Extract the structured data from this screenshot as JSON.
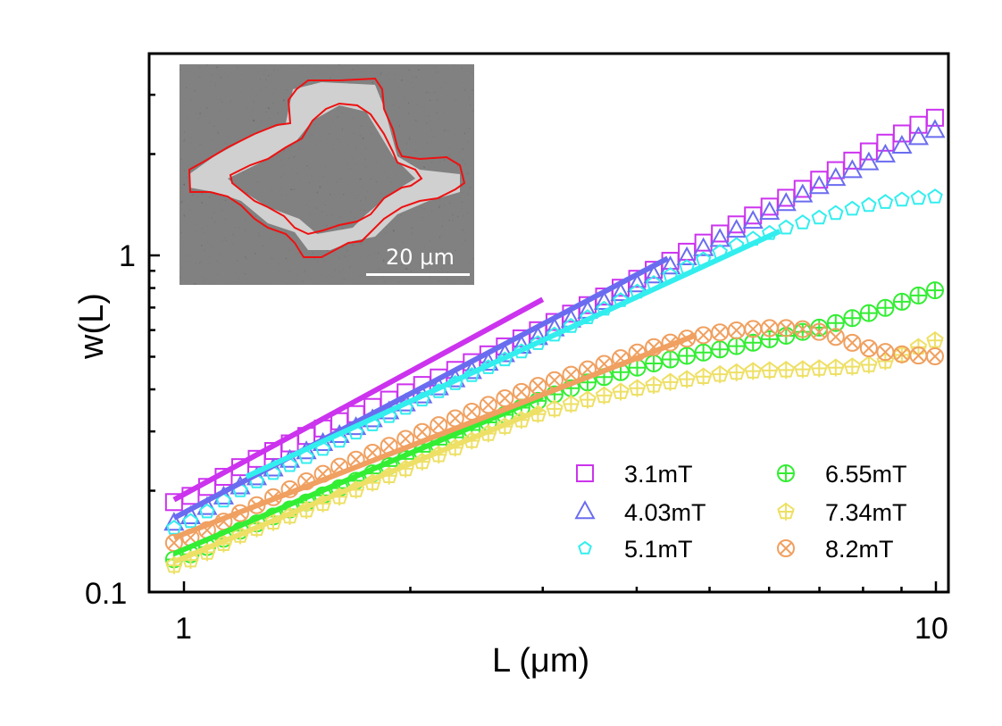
{
  "chart_data": {
    "type": "scatter",
    "title": "",
    "xlabel": "L (μm)",
    "ylabel": "w(L)",
    "xscale": "log",
    "yscale": "log",
    "xlim": [
      0.9,
      10.4
    ],
    "ylim": [
      0.1,
      4.0
    ],
    "x_ticks": [
      1,
      10
    ],
    "x_tick_labels": [
      "1",
      "10"
    ],
    "y_ticks": [
      0.1,
      1
    ],
    "y_tick_labels": [
      "0.1",
      "1"
    ],
    "grid": false,
    "legend_position": "lower right",
    "inset": {
      "description": "grayscale micrograph of a domain wall with red contour outlines",
      "scale_bar_label": "20 μm"
    },
    "series": [
      {
        "name": "3.1mT",
        "marker": "square",
        "color": "#cc33ee",
        "x": [
          0.97,
          1.21,
          1.5,
          1.86,
          2.31,
          2.87,
          3.56,
          4.42,
          5.48,
          6.8,
          8.43,
          10.3
        ],
        "y": [
          0.185,
          0.24,
          0.3,
          0.37,
          0.46,
          0.58,
          0.74,
          0.96,
          1.25,
          1.62,
          2.12,
          2.62
        ],
        "fit": {
          "x": [
            0.97,
            3.0
          ],
          "y": [
            0.188,
            0.74
          ]
        }
      },
      {
        "name": "4.03mT",
        "marker": "triangle",
        "color": "#6a6cf0",
        "x": [
          0.97,
          1.21,
          1.5,
          1.86,
          2.31,
          2.87,
          3.56,
          4.42,
          5.48,
          6.8,
          8.43,
          10.3
        ],
        "y": [
          0.16,
          0.21,
          0.27,
          0.34,
          0.43,
          0.55,
          0.71,
          0.92,
          1.2,
          1.55,
          1.95,
          2.4
        ],
        "fit": {
          "x": [
            0.97,
            4.4
          ],
          "y": [
            0.166,
            0.98
          ]
        }
      },
      {
        "name": "5.1mT",
        "marker": "pentagon",
        "color": "#33eeee",
        "x": [
          0.97,
          1.21,
          1.5,
          1.86,
          2.31,
          2.87,
          3.56,
          4.42,
          5.48,
          6.8,
          8.43,
          10.3
        ],
        "y": [
          0.155,
          0.205,
          0.26,
          0.33,
          0.42,
          0.53,
          0.68,
          0.87,
          1.08,
          1.27,
          1.43,
          1.5
        ],
        "fit": {
          "x": [
            1.21,
            6.2
          ],
          "y": [
            0.22,
            1.18
          ]
        }
      },
      {
        "name": "6.55mT",
        "marker": "circle-plus",
        "color": "#33ee33",
        "x": [
          0.97,
          1.21,
          1.5,
          1.86,
          2.31,
          2.87,
          3.56,
          4.42,
          5.48,
          6.8,
          8.43,
          10.3
        ],
        "y": [
          0.125,
          0.155,
          0.19,
          0.235,
          0.29,
          0.36,
          0.43,
          0.49,
          0.54,
          0.6,
          0.69,
          0.8
        ],
        "fit": {
          "x": [
            0.97,
            3.0
          ],
          "y": [
            0.13,
            0.38
          ]
        }
      },
      {
        "name": "7.34mT",
        "marker": "pentagon-plus",
        "color": "#eee066",
        "x": [
          0.97,
          1.21,
          1.5,
          1.86,
          2.31,
          2.87,
          3.56,
          4.42,
          5.48,
          6.8,
          8.43,
          10.3
        ],
        "y": [
          0.12,
          0.15,
          0.18,
          0.22,
          0.27,
          0.33,
          0.38,
          0.42,
          0.45,
          0.46,
          0.48,
          0.57
        ],
        "fit": {
          "x": [
            0.97,
            3.0
          ],
          "y": [
            0.123,
            0.35
          ]
        }
      },
      {
        "name": "8.2mT",
        "marker": "circle-x",
        "color": "#f0a060",
        "x": [
          0.97,
          1.21,
          1.5,
          1.86,
          2.31,
          2.87,
          3.56,
          4.42,
          5.48,
          6.8,
          8.43,
          10.3
        ],
        "y": [
          0.14,
          0.175,
          0.22,
          0.27,
          0.33,
          0.4,
          0.47,
          0.55,
          0.6,
          0.6,
          0.52,
          0.5
        ],
        "fit": {
          "x": [
            0.97,
            4.8
          ],
          "y": [
            0.145,
            0.58
          ]
        }
      }
    ]
  }
}
